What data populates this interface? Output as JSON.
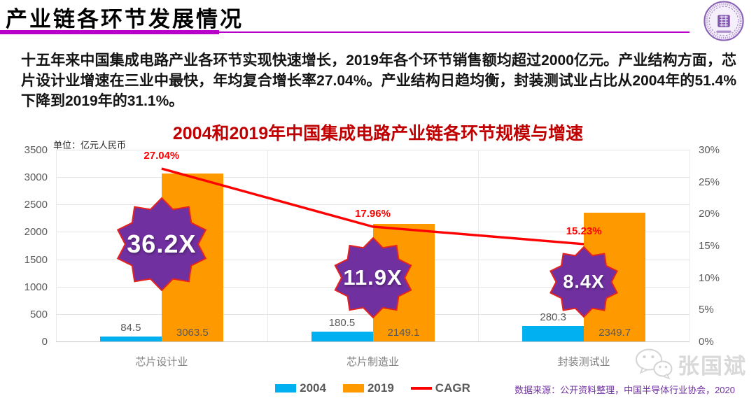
{
  "header": {
    "title": "产业链各环节发展情况",
    "accent_color": "#b801c8",
    "logo": "university-seal"
  },
  "intro": {
    "text": "十五年来中国集成电路产业各环节实现快速增长，2019年各个环节销售额均超过2000亿元。产业结构方面，芯片设计业增速在三业中最快，年均复合增长率27.04%。产业结构日趋均衡，封装测试业占比从2004年的51.4%下降到2019年的31.1%。"
  },
  "chart_data": {
    "type": "bar",
    "title": "2004和2019年中国集成电路产业链各环节规模与增速",
    "title_color": "#c00000",
    "unit_label": "单位：亿元人民币",
    "categories": [
      "芯片设计业",
      "芯片制造业",
      "封装测试业"
    ],
    "series": [
      {
        "name": "2004",
        "type": "bar",
        "color": "#00b0f0",
        "values": [
          84.5,
          180.5,
          280.3
        ]
      },
      {
        "name": "2019",
        "type": "bar",
        "color": "#ff9900",
        "values": [
          3063.5,
          2149.1,
          2349.7
        ]
      },
      {
        "name": "CAGR",
        "type": "line",
        "axis": "right",
        "color": "#ff0000",
        "values_pct": [
          27.04,
          17.96,
          15.23
        ],
        "point_labels": [
          "27.04%",
          "17.96%",
          "15.23%"
        ]
      }
    ],
    "multipliers": [
      "36.2X",
      "11.9X",
      "8.4X"
    ],
    "multiplier_badge": {
      "shape": "10-point-star",
      "fill": "#7030a0",
      "border": "#e42320"
    },
    "left_axis": {
      "min": 0,
      "max": 3500,
      "step": 500,
      "ticks": [
        "0",
        "500",
        "1000",
        "1500",
        "2000",
        "2500",
        "3000",
        "3500"
      ]
    },
    "right_axis": {
      "min": 0,
      "max": 30,
      "step": 5,
      "ticks": [
        "0%",
        "5%",
        "10%",
        "15%",
        "20%",
        "25%",
        "30%"
      ]
    },
    "grid": true,
    "legend_position": "bottom"
  },
  "footer": {
    "source": "数据来源：公开资料整理，中国半导体行业协会，2020",
    "source_color": "#7030a0",
    "watermark_name": "张国斌",
    "watermark_icon": "wechat-icon"
  }
}
